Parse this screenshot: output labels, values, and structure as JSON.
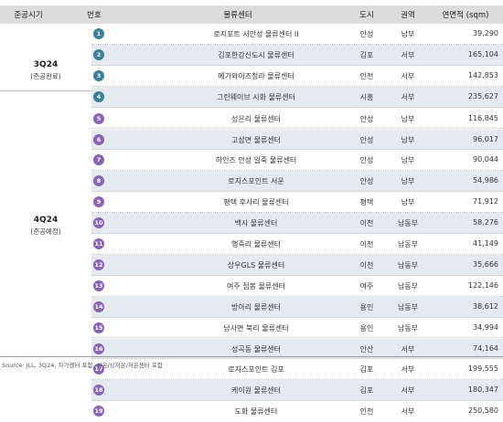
{
  "headers": {
    "period": "준공시기",
    "number": "번호",
    "name": "물류센터",
    "city": "도시",
    "region": "권역",
    "area": "연면적 (sqm)"
  },
  "groups": [
    {
      "title": "3Q24",
      "subtitle": "(준공완료)"
    },
    {
      "title": "4Q24",
      "subtitle": "(준공예정)"
    }
  ],
  "colors": {
    "group1_badge": "#3a7f97",
    "group2_badge": "#8a63b3",
    "row_shade": "#e5eaf1",
    "header_bg": "#dcdcdc"
  },
  "rows": [
    {
      "num": "1",
      "name": "로지포트 서안성 물류센터 II",
      "city": "안성",
      "region": "남부",
      "area": "39,290"
    },
    {
      "num": "2",
      "name": "김포한강신도시 물류센터",
      "city": "김포",
      "region": "서부",
      "area": "165,104"
    },
    {
      "num": "3",
      "name": "메가와이즈청라 물류센터",
      "city": "인천",
      "region": "서부",
      "area": "142,853"
    },
    {
      "num": "4",
      "name": "그린웨이브 시화 물류센터",
      "city": "시흥",
      "region": "서부",
      "area": "235,627"
    },
    {
      "num": "5",
      "name": "성은리 물류센터",
      "city": "안성",
      "region": "남부",
      "area": "116,845"
    },
    {
      "num": "6",
      "name": "고삼면 물류센터",
      "city": "안성",
      "region": "남부",
      "area": "96,017"
    },
    {
      "num": "7",
      "name": "하인즈 안성 일죽 물류센터",
      "city": "안성",
      "region": "남부",
      "area": "90,044"
    },
    {
      "num": "8",
      "name": "로지스포인트 서운",
      "city": "안성",
      "region": "남부",
      "area": "54,986"
    },
    {
      "num": "9",
      "name": "평택 후사리 물류센터",
      "city": "평택",
      "region": "남부",
      "area": "71,912"
    },
    {
      "num": "10",
      "name": "백사 물류센터",
      "city": "이천",
      "region": "남동부",
      "area": "58,276"
    },
    {
      "num": "11",
      "name": "행죽리 물류센터",
      "city": "이천",
      "region": "남동부",
      "area": "41,149"
    },
    {
      "num": "12",
      "name": "상우GLS 물류센터",
      "city": "이천",
      "region": "남동부",
      "area": "35,666"
    },
    {
      "num": "13",
      "name": "여주 점봉 물류센터",
      "city": "여주",
      "region": "남동부",
      "area": "122,146"
    },
    {
      "num": "14",
      "name": "방아리 물류센터",
      "city": "용인",
      "region": "남동부",
      "area": "38,612"
    },
    {
      "num": "15",
      "name": "남사면 북리 물류센터",
      "city": "용인",
      "region": "남동부",
      "area": "34,994"
    },
    {
      "num": "16",
      "name": "성곡동 물류센터",
      "city": "안산",
      "region": "서부",
      "area": "74,164"
    },
    {
      "num": "17",
      "name": "로지스포인트 김포",
      "city": "김포",
      "region": "서부",
      "area": "199,555"
    },
    {
      "num": "18",
      "name": "케이원 물류센터",
      "city": "김포",
      "region": "서부",
      "area": "180,347"
    },
    {
      "num": "19",
      "name": "도화 물류센터",
      "city": "인천",
      "region": "서부",
      "area": "250,580"
    }
  ],
  "source": "Source: JLL, 3Q24, 자가센터 포함, 상온/상저온/저온센터 포함"
}
